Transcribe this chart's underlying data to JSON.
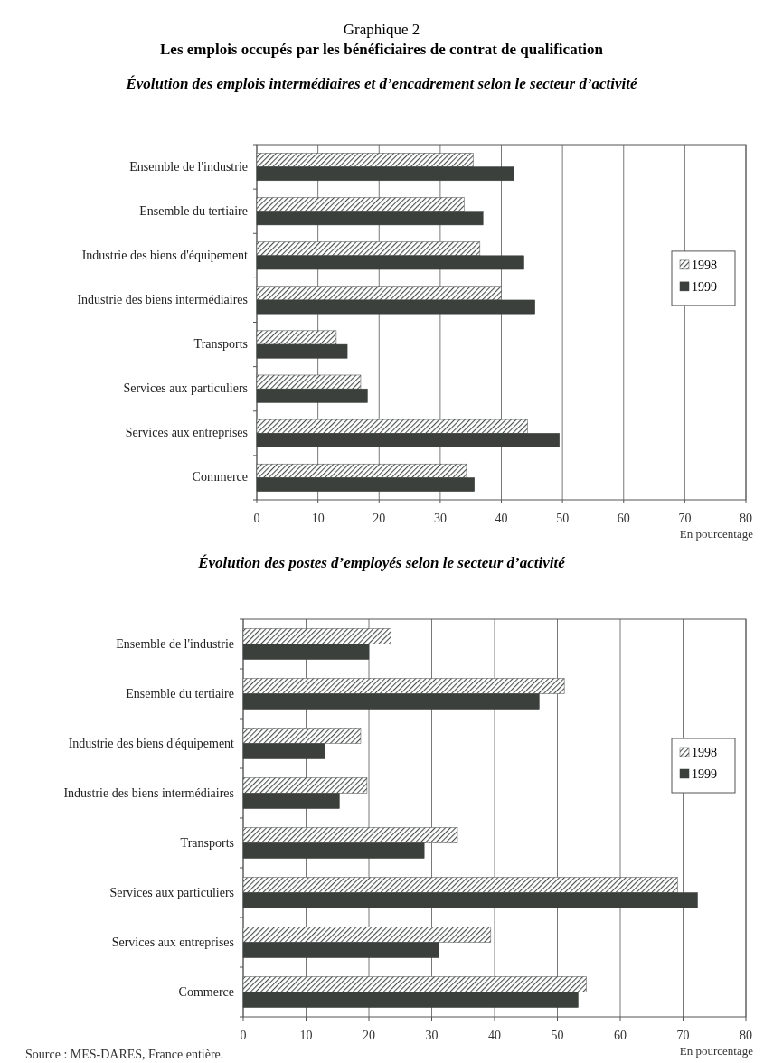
{
  "chart_data": [
    {
      "type": "other",
      "title": "Graphique 2",
      "subtitle": "Les emplois occupés par les bénéficiaires de contrat de qualification"
    },
    {
      "type": "bar",
      "orientation": "horizontal",
      "title": "Évolution des emplois intermédiaires et d’encadrement selon le secteur d’activité",
      "categories": [
        "Ensemble de l'industrie",
        "Ensemble du tertiaire",
        "Industrie des biens d'équipement",
        "Industrie des biens intermédiaires",
        "Transports",
        "Services aux particuliers",
        "Services aux entreprises",
        "Commerce"
      ],
      "series": [
        {
          "name": "1998",
          "color": "#4a4f4c",
          "values": [
            35.4,
            33.9,
            36.5,
            40.0,
            13.0,
            17.0,
            44.3,
            34.3
          ]
        },
        {
          "name": "1999",
          "color": "#3b403d",
          "values": [
            42.0,
            37.0,
            43.7,
            45.5,
            14.8,
            18.1,
            49.5,
            35.6
          ]
        }
      ],
      "xlim": [
        0,
        80
      ],
      "xticks": [
        0,
        10,
        20,
        30,
        40,
        50,
        60,
        70,
        80
      ],
      "xlabel": "En pourcentage",
      "grid": "x",
      "legend": "right"
    },
    {
      "type": "bar",
      "orientation": "horizontal",
      "title": "Évolution des postes d’employés selon le secteur d’activité",
      "categories": [
        "Ensemble de l'industrie",
        "Ensemble du tertiaire",
        "Industrie des biens d'équipement",
        "Industrie des biens intermédiaires",
        "Transports",
        "Services aux particuliers",
        "Services aux entreprises",
        "Commerce"
      ],
      "series": [
        {
          "name": "1998",
          "color": "#4a4f4c",
          "values": [
            23.5,
            51.1,
            18.7,
            19.7,
            34.1,
            69.1,
            39.4,
            54.6
          ]
        },
        {
          "name": "1999",
          "color": "#3b403d",
          "values": [
            20.0,
            47.1,
            13.0,
            15.3,
            28.8,
            72.3,
            31.1,
            53.3
          ]
        }
      ],
      "xlim": [
        0,
        80
      ],
      "xticks": [
        0,
        10,
        20,
        30,
        40,
        50,
        60,
        70,
        80
      ],
      "xlabel": "En pourcentage",
      "grid": "x",
      "legend": "right",
      "annotations": [
        "Source : MES-DARES, France entière."
      ]
    }
  ]
}
